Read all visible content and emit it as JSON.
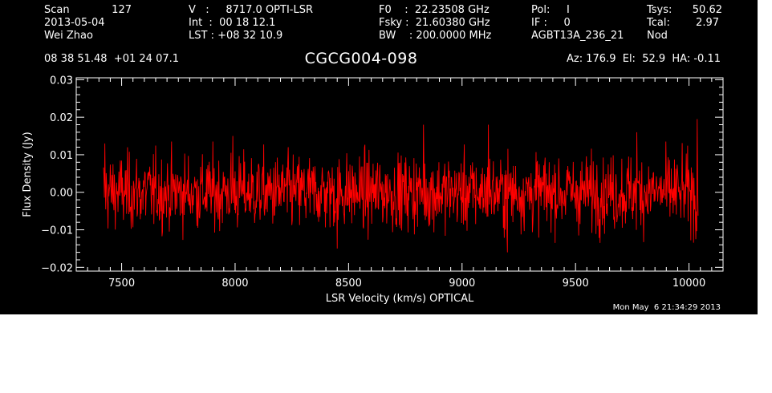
{
  "header": {
    "col1": {
      "scan_label": "Scan",
      "scan_value": "127",
      "date": "2013-05-04",
      "observer": "Wei Zhao"
    },
    "col2": {
      "v_line": "V   :     8717.0 OPTI-LSR",
      "int_line": "Int  :  00 18 12.1",
      "lst_line": "LST : +08 32 10.9"
    },
    "col3": {
      "f0_line": "F0    :  22.23508 GHz",
      "fsky_line": "Fsky :  21.60380 GHz",
      "bw_line": "BW    : 200.0000 MHz"
    },
    "col4": {
      "pol_line": "Pol:     I",
      "if_line": "IF :     0",
      "project": "AGBT13A_236_21"
    },
    "col5": {
      "tsys_label": "Tsys:",
      "tsys_value": "50.62",
      "tcal_label": "Tcal:",
      "tcal_value": "2.97",
      "mode": "Nod"
    },
    "coords": "08 38 51.48  +01 24 07.1",
    "source": "CGCG004-098",
    "pointing": "Az: 176.9  El:  52.9  HA: -0.11"
  },
  "timestamp": "Mon May  6 21:34:29 2013",
  "colors": {
    "background": "#000000",
    "axes": "#ffffff",
    "spectrum": "#ff0000"
  },
  "chart_data": {
    "type": "line",
    "xlabel": "LSR Velocity (km/s) OPTICAL",
    "ylabel": "Flux Density (Jy)",
    "xlim": [
      7300,
      10150
    ],
    "ylim": [
      -0.021,
      0.0305
    ],
    "xticks": [
      7500,
      8000,
      8500,
      9000,
      9500,
      10000
    ],
    "xtick_labels": [
      "7500",
      "8000",
      "8500",
      "9000",
      "9500",
      "10000"
    ],
    "yticks": [
      -0.02,
      -0.01,
      0.0,
      0.01,
      0.02,
      0.03
    ],
    "ytick_labels": [
      "−0.02",
      "−0.01",
      "0.00",
      "0.01",
      "0.02",
      "0.03"
    ],
    "series": [
      {
        "x_start": 7420,
        "x_end": 10040,
        "x_step": 2.0,
        "noise_rms": 0.0055,
        "baseline": 0.0,
        "peak_values": [
          {
            "x": 7425,
            "y": 0.013
          },
          {
            "x": 7990,
            "y": 0.015
          },
          {
            "x": 8830,
            "y": 0.018
          },
          {
            "x": 9115,
            "y": 0.018
          },
          {
            "x": 9770,
            "y": 0.016
          },
          {
            "x": 10035,
            "y": 0.0195
          },
          {
            "x": 8450,
            "y": -0.015
          },
          {
            "x": 9200,
            "y": -0.016
          },
          {
            "x": 10030,
            "y": -0.0125
          }
        ]
      }
    ]
  }
}
